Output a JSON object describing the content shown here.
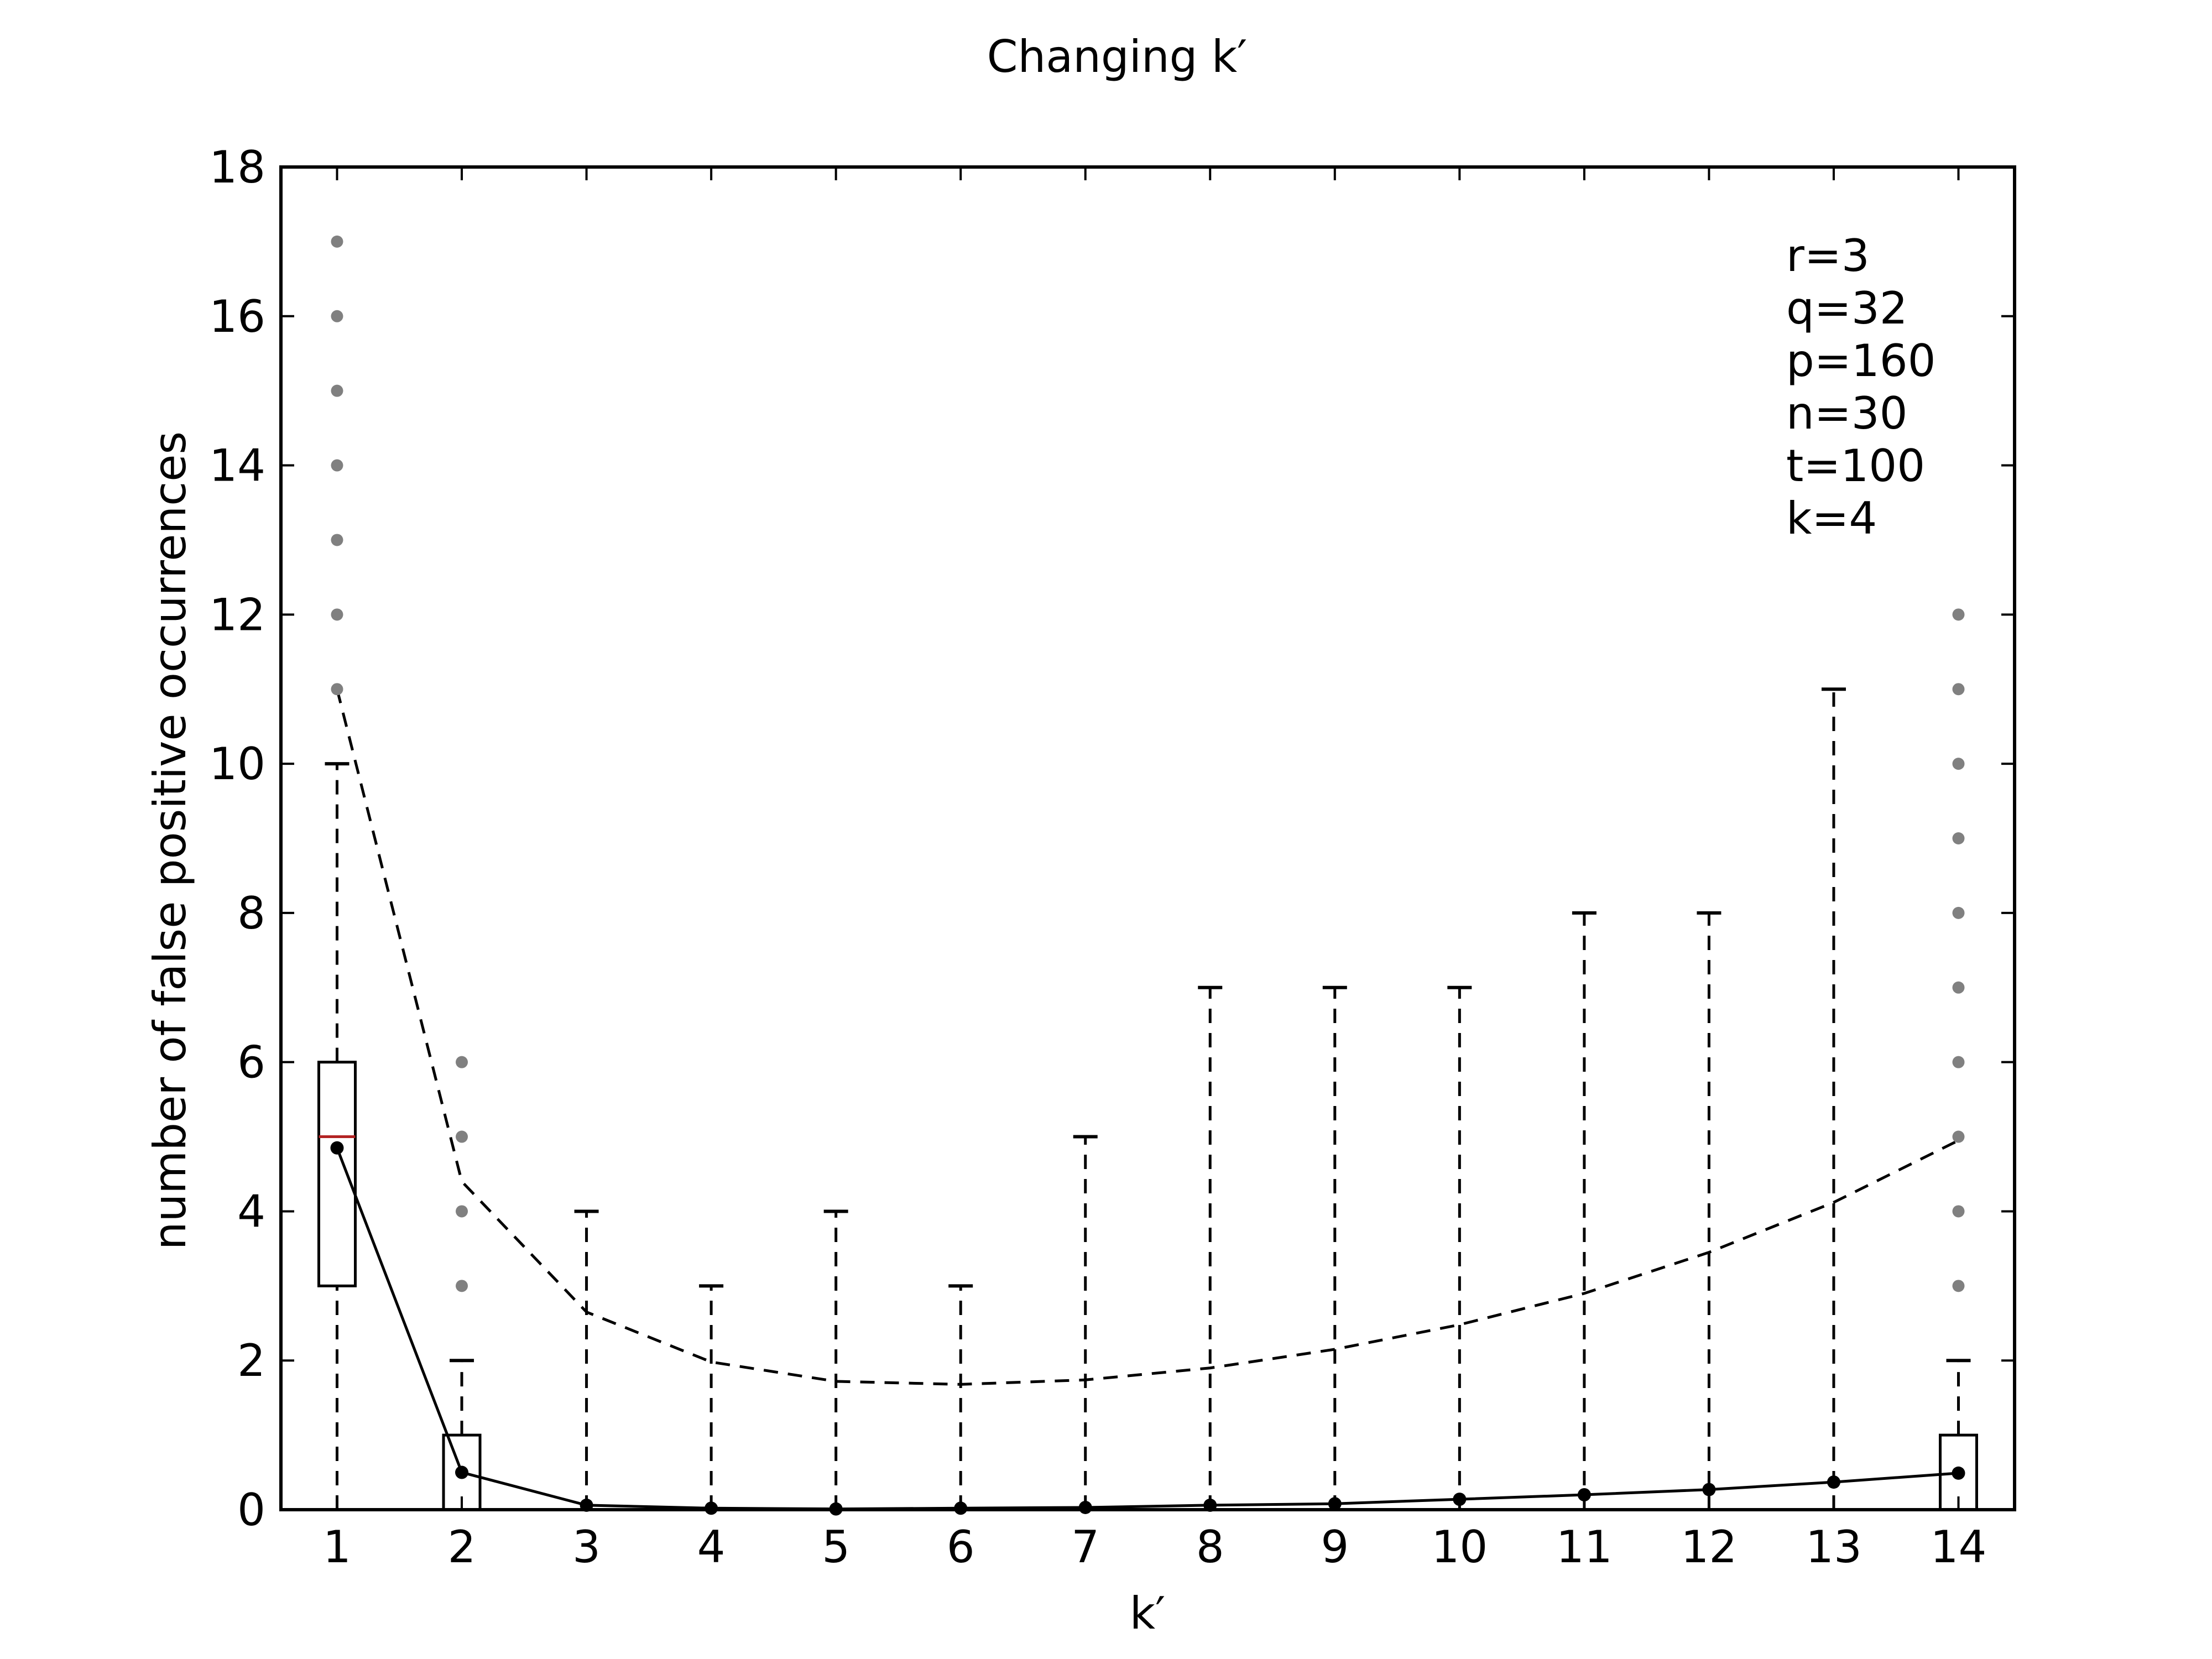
{
  "chart_data": {
    "type": "box",
    "title": "Changing k′",
    "xlabel": "k′",
    "ylabel": "number of false positive occurrences",
    "x_ticks": [
      "1",
      "2",
      "3",
      "4",
      "5",
      "6",
      "7",
      "8",
      "9",
      "10",
      "11",
      "12",
      "13",
      "14"
    ],
    "y_ticks": [
      "0",
      "2",
      "4",
      "6",
      "8",
      "10",
      "12",
      "14",
      "16",
      "18"
    ],
    "xlim": [
      0.55,
      14.45
    ],
    "ylim": [
      0,
      18
    ],
    "grid": false,
    "annotation_lines": [
      "r=3",
      "q=32",
      "p=160",
      "n=30",
      "t=100",
      "k=4"
    ],
    "boxes": [
      {
        "x": 1,
        "q1": 3,
        "median": 5,
        "q3": 6,
        "whisker_low": 0,
        "whisker_high": 10,
        "outliers": [
          11,
          12,
          13,
          14,
          15,
          16,
          17
        ]
      },
      {
        "x": 2,
        "q1": 0,
        "median": 0,
        "q3": 1,
        "whisker_low": 0,
        "whisker_high": 2,
        "outliers": [
          3,
          4,
          5,
          6
        ]
      },
      {
        "x": 3,
        "q1": 0,
        "median": 0,
        "q3": 0,
        "whisker_low": 0,
        "whisker_high": 4,
        "outliers": []
      },
      {
        "x": 4,
        "q1": 0,
        "median": 0,
        "q3": 0,
        "whisker_low": 0,
        "whisker_high": 3,
        "outliers": []
      },
      {
        "x": 5,
        "q1": 0,
        "median": 0,
        "q3": 0,
        "whisker_low": 0,
        "whisker_high": 4,
        "outliers": []
      },
      {
        "x": 6,
        "q1": 0,
        "median": 0,
        "q3": 0,
        "whisker_low": 0,
        "whisker_high": 3,
        "outliers": []
      },
      {
        "x": 7,
        "q1": 0,
        "median": 0,
        "q3": 0,
        "whisker_low": 0,
        "whisker_high": 5,
        "outliers": []
      },
      {
        "x": 8,
        "q1": 0,
        "median": 0,
        "q3": 0,
        "whisker_low": 0,
        "whisker_high": 7,
        "outliers": []
      },
      {
        "x": 9,
        "q1": 0,
        "median": 0,
        "q3": 0,
        "whisker_low": 0,
        "whisker_high": 7,
        "outliers": []
      },
      {
        "x": 10,
        "q1": 0,
        "median": 0,
        "q3": 0,
        "whisker_low": 0,
        "whisker_high": 7,
        "outliers": []
      },
      {
        "x": 11,
        "q1": 0,
        "median": 0,
        "q3": 0,
        "whisker_low": 0,
        "whisker_high": 8,
        "outliers": []
      },
      {
        "x": 12,
        "q1": 0,
        "median": 0,
        "q3": 0,
        "whisker_low": 0,
        "whisker_high": 8,
        "outliers": []
      },
      {
        "x": 13,
        "q1": 0,
        "median": 0,
        "q3": 0,
        "whisker_low": 0,
        "whisker_high": 11,
        "outliers": []
      },
      {
        "x": 14,
        "q1": 0,
        "median": 0,
        "q3": 1,
        "whisker_low": 0,
        "whisker_high": 2,
        "outliers": [
          3,
          4,
          5,
          6,
          7,
          8,
          9,
          10,
          11,
          12
        ]
      }
    ],
    "series": [
      {
        "style": "solid-with-markers",
        "x": [
          1,
          2,
          3,
          4,
          5,
          6,
          7,
          8,
          9,
          10,
          11,
          12,
          13,
          14
        ],
        "y": [
          4.85,
          0.5,
          0.06,
          0.02,
          0.01,
          0.02,
          0.03,
          0.06,
          0.08,
          0.14,
          0.2,
          0.27,
          0.37,
          0.49
        ]
      },
      {
        "style": "dashed",
        "x": [
          1,
          2,
          3,
          4,
          5,
          6,
          7,
          8,
          9,
          10,
          11,
          12,
          13,
          14
        ],
        "y": [
          11.0,
          4.4,
          2.65,
          1.98,
          1.72,
          1.68,
          1.74,
          1.9,
          2.15,
          2.48,
          2.9,
          3.45,
          4.12,
          4.95
        ]
      }
    ],
    "colors": {
      "median": "#b22222",
      "outlier": "#808080",
      "line": "#000000"
    }
  }
}
